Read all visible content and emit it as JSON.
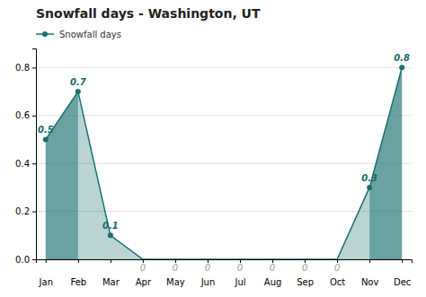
{
  "chart_data": {
    "type": "area",
    "title": "Snowfall days - Washington, UT",
    "categories": [
      "Jan",
      "Feb",
      "Mar",
      "Apr",
      "May",
      "Jun",
      "Jul",
      "Aug",
      "Sep",
      "Oct",
      "Nov",
      "Dec"
    ],
    "series": [
      {
        "name": "Snowfall days",
        "color": "#1a7070",
        "values": [
          0.5,
          0.7,
          0.1,
          0,
          0,
          0,
          0,
          0,
          0,
          0,
          0.3,
          0.8
        ]
      }
    ],
    "ylim": [
      0,
      0.88
    ],
    "yticks": [
      {
        "value": 0.0,
        "label": "0.0"
      },
      0.2,
      0.4,
      0.6,
      0.8
    ],
    "grid": true,
    "legend": "upper left",
    "data_labels": true,
    "marker": "circle"
  }
}
